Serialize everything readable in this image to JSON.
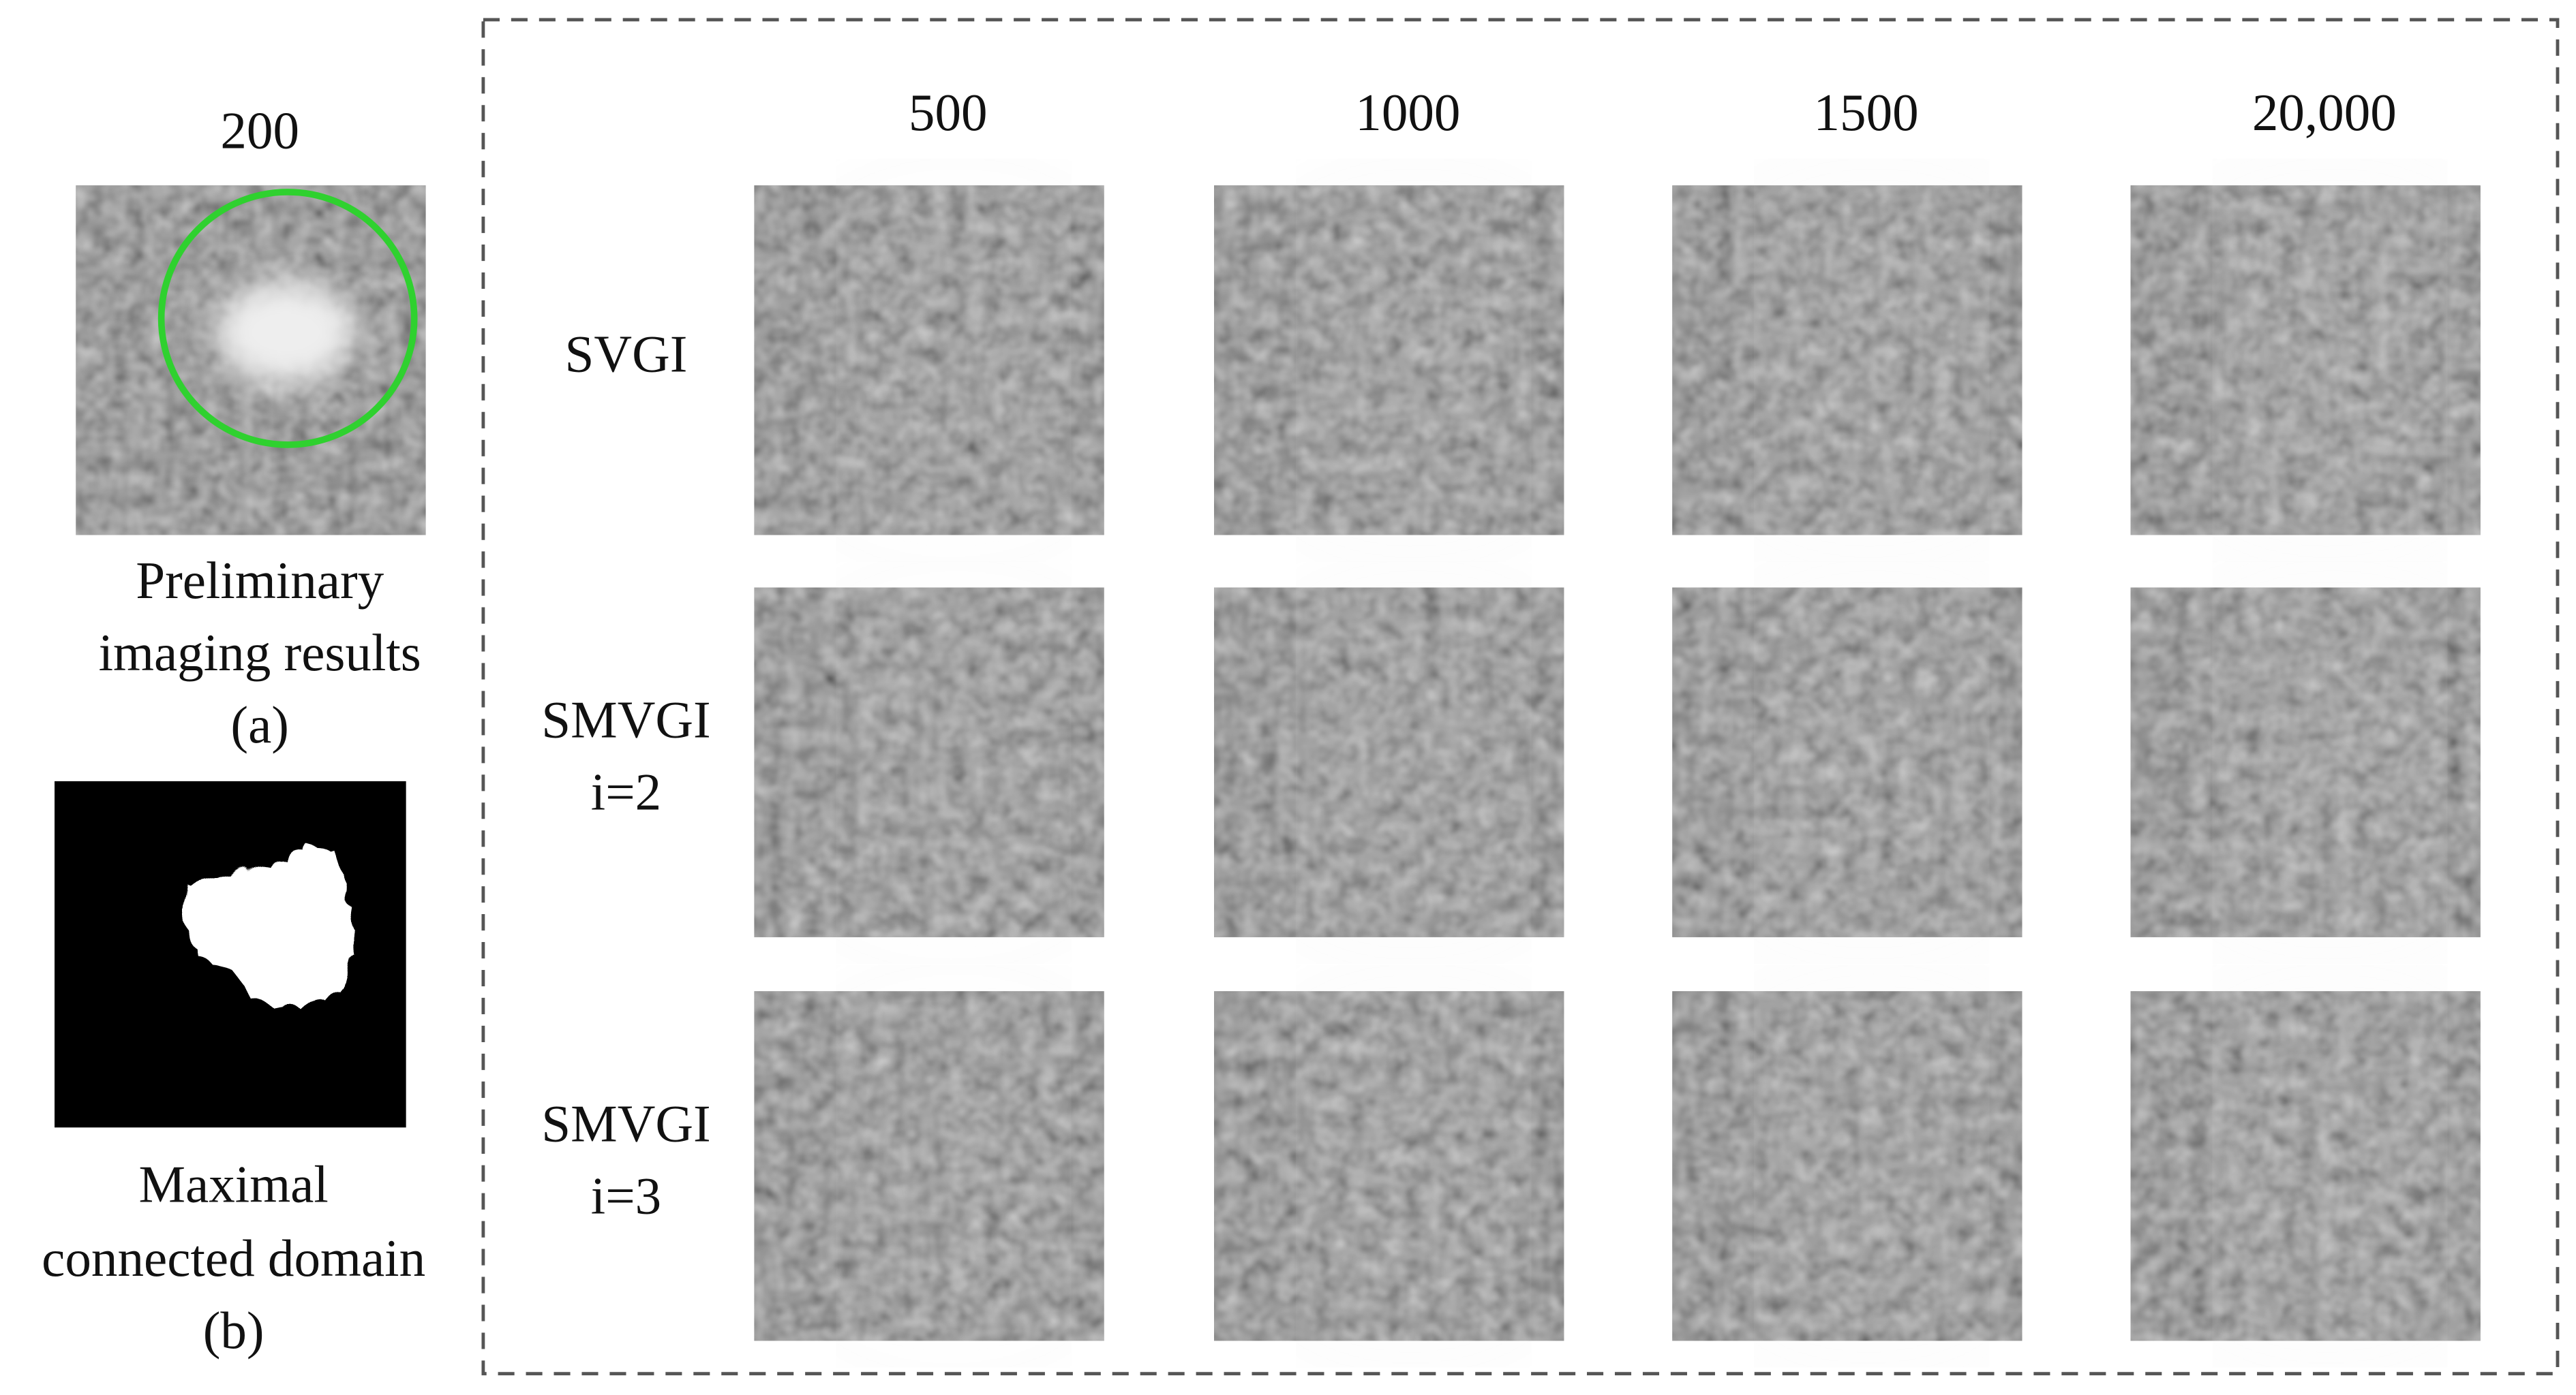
{
  "panel_a": {
    "header": "200",
    "caption": [
      "Preliminary",
      "imaging results"
    ],
    "label": "(a)"
  },
  "panel_b": {
    "caption": [
      "Maximal",
      "connected domain"
    ],
    "label": "(b)"
  },
  "grid": {
    "columns": [
      "500",
      "1000",
      "1500",
      "20,000"
    ],
    "rows": [
      [
        "SVGI"
      ],
      [
        "SMVGI",
        "i=2"
      ],
      [
        "SMVGI",
        "i=3"
      ]
    ]
  }
}
